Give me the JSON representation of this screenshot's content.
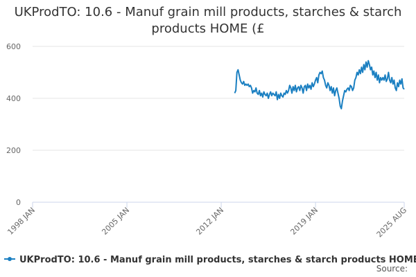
{
  "chart_data": {
    "type": "line",
    "title": "UKProdTO: 10.6 - Manuf grain mill products, starches & starch products HOME (£",
    "source": "Source:",
    "x": [
      "2013 JAN",
      "2013 FEB",
      "2013 MAR",
      "2013 APR",
      "2013 MAY",
      "2013 JUN",
      "2013 JUL",
      "2013 AUG",
      "2013 SEP",
      "2013 OCT",
      "2013 NOV",
      "2013 DEC",
      "2014 JAN",
      "2014 FEB",
      "2014 MAR",
      "2014 APR",
      "2014 MAY",
      "2014 JUN",
      "2014 JUL",
      "2014 AUG",
      "2014 SEP",
      "2014 OCT",
      "2014 NOV",
      "2014 DEC",
      "2015 JAN",
      "2015 FEB",
      "2015 MAR",
      "2015 APR",
      "2015 MAY",
      "2015 JUN",
      "2015 JUL",
      "2015 AUG",
      "2015 SEP",
      "2015 OCT",
      "2015 NOV",
      "2015 DEC",
      "2016 JAN",
      "2016 FEB",
      "2016 MAR",
      "2016 APR",
      "2016 MAY",
      "2016 JUN",
      "2016 JUL",
      "2016 AUG",
      "2016 SEP",
      "2016 OCT",
      "2016 NOV",
      "2016 DEC",
      "2017 JAN",
      "2017 FEB",
      "2017 MAR",
      "2017 APR",
      "2017 MAY",
      "2017 JUN",
      "2017 JUL",
      "2017 AUG",
      "2017 SEP",
      "2017 OCT",
      "2017 NOV",
      "2017 DEC",
      "2018 JAN",
      "2018 FEB",
      "2018 MAR",
      "2018 APR",
      "2018 MAY",
      "2018 JUN",
      "2018 JUL",
      "2018 AUG",
      "2018 SEP",
      "2018 OCT",
      "2018 NOV",
      "2018 DEC",
      "2019 JAN",
      "2019 FEB",
      "2019 MAR",
      "2019 APR",
      "2019 MAY",
      "2019 JUN",
      "2019 JUL",
      "2019 AUG",
      "2019 SEP",
      "2019 OCT",
      "2019 NOV",
      "2019 DEC",
      "2020 JAN",
      "2020 FEB",
      "2020 MAR",
      "2020 APR",
      "2020 MAY",
      "2020 JUN",
      "2020 JUL",
      "2020 AUG",
      "2020 SEP",
      "2020 OCT",
      "2020 NOV",
      "2020 DEC",
      "2021 JAN",
      "2021 FEB",
      "2021 MAR",
      "2021 APR",
      "2021 MAY",
      "2021 JUN",
      "2021 JUL",
      "2021 AUG",
      "2021 SEP",
      "2021 OCT",
      "2021 NOV",
      "2021 DEC",
      "2022 JAN",
      "2022 FEB",
      "2022 MAR",
      "2022 APR",
      "2022 MAY",
      "2022 JUN",
      "2022 JUL",
      "2022 AUG",
      "2022 SEP",
      "2022 OCT",
      "2022 NOV",
      "2022 DEC",
      "2023 JAN",
      "2023 FEB",
      "2023 MAR",
      "2023 APR",
      "2023 MAY",
      "2023 JUN",
      "2023 JUL",
      "2023 AUG",
      "2023 SEP",
      "2023 OCT",
      "2023 NOV",
      "2023 DEC",
      "2024 JAN",
      "2024 FEB",
      "2024 MAR",
      "2024 APR",
      "2024 MAY",
      "2024 JUN",
      "2024 JUL",
      "2024 AUG",
      "2024 SEP",
      "2024 OCT",
      "2024 NOV",
      "2024 DEC",
      "2025 JAN",
      "2025 FEB",
      "2025 MAR",
      "2025 APR",
      "2025 MAY",
      "2025 JUN",
      "2025 JUL",
      "2025 AUG"
    ],
    "series": [
      {
        "name": "UKProdTO: 10.6 - Manuf grain mill products, starches & starch products HOME (£",
        "color": "#1a7fc1",
        "values": [
          420,
          430,
          500,
          510,
          490,
          470,
          460,
          455,
          465,
          450,
          455,
          450,
          455,
          445,
          450,
          440,
          420,
          430,
          425,
          440,
          420,
          415,
          430,
          410,
          420,
          405,
          425,
          415,
          410,
          420,
          400,
          415,
          425,
          410,
          420,
          415,
          410,
          425,
          395,
          415,
          400,
          420,
          410,
          405,
          420,
          415,
          430,
          420,
          430,
          450,
          440,
          420,
          445,
          430,
          450,
          425,
          440,
          445,
          430,
          450,
          440,
          420,
          445,
          450,
          430,
          455,
          440,
          450,
          435,
          460,
          445,
          455,
          470,
          480,
          460,
          490,
          500,
          495,
          505,
          480,
          470,
          450,
          440,
          460,
          450,
          430,
          445,
          420,
          440,
          410,
          430,
          440,
          420,
          400,
          370,
          360,
          390,
          410,
          430,
          425,
          435,
          440,
          430,
          450,
          445,
          430,
          440,
          470,
          480,
          500,
          490,
          510,
          495,
          520,
          500,
          530,
          510,
          540,
          520,
          545,
          530,
          510,
          520,
          490,
          505,
          480,
          500,
          470,
          490,
          460,
          480,
          470,
          480,
          470,
          490,
          465,
          475,
          500,
          470,
          460,
          480,
          455,
          470,
          440,
          430,
          460,
          445,
          470,
          455,
          475,
          440,
          435
        ]
      }
    ],
    "xlim": [
      "1998 JAN",
      "2025 AUG"
    ],
    "xticks": [
      "1998 JAN",
      "2005 JAN",
      "2012 JAN",
      "2019 JAN",
      "2025 AUG"
    ],
    "ylim": [
      0,
      600
    ],
    "yticks": [
      0,
      200,
      400,
      600
    ],
    "grid": true
  }
}
